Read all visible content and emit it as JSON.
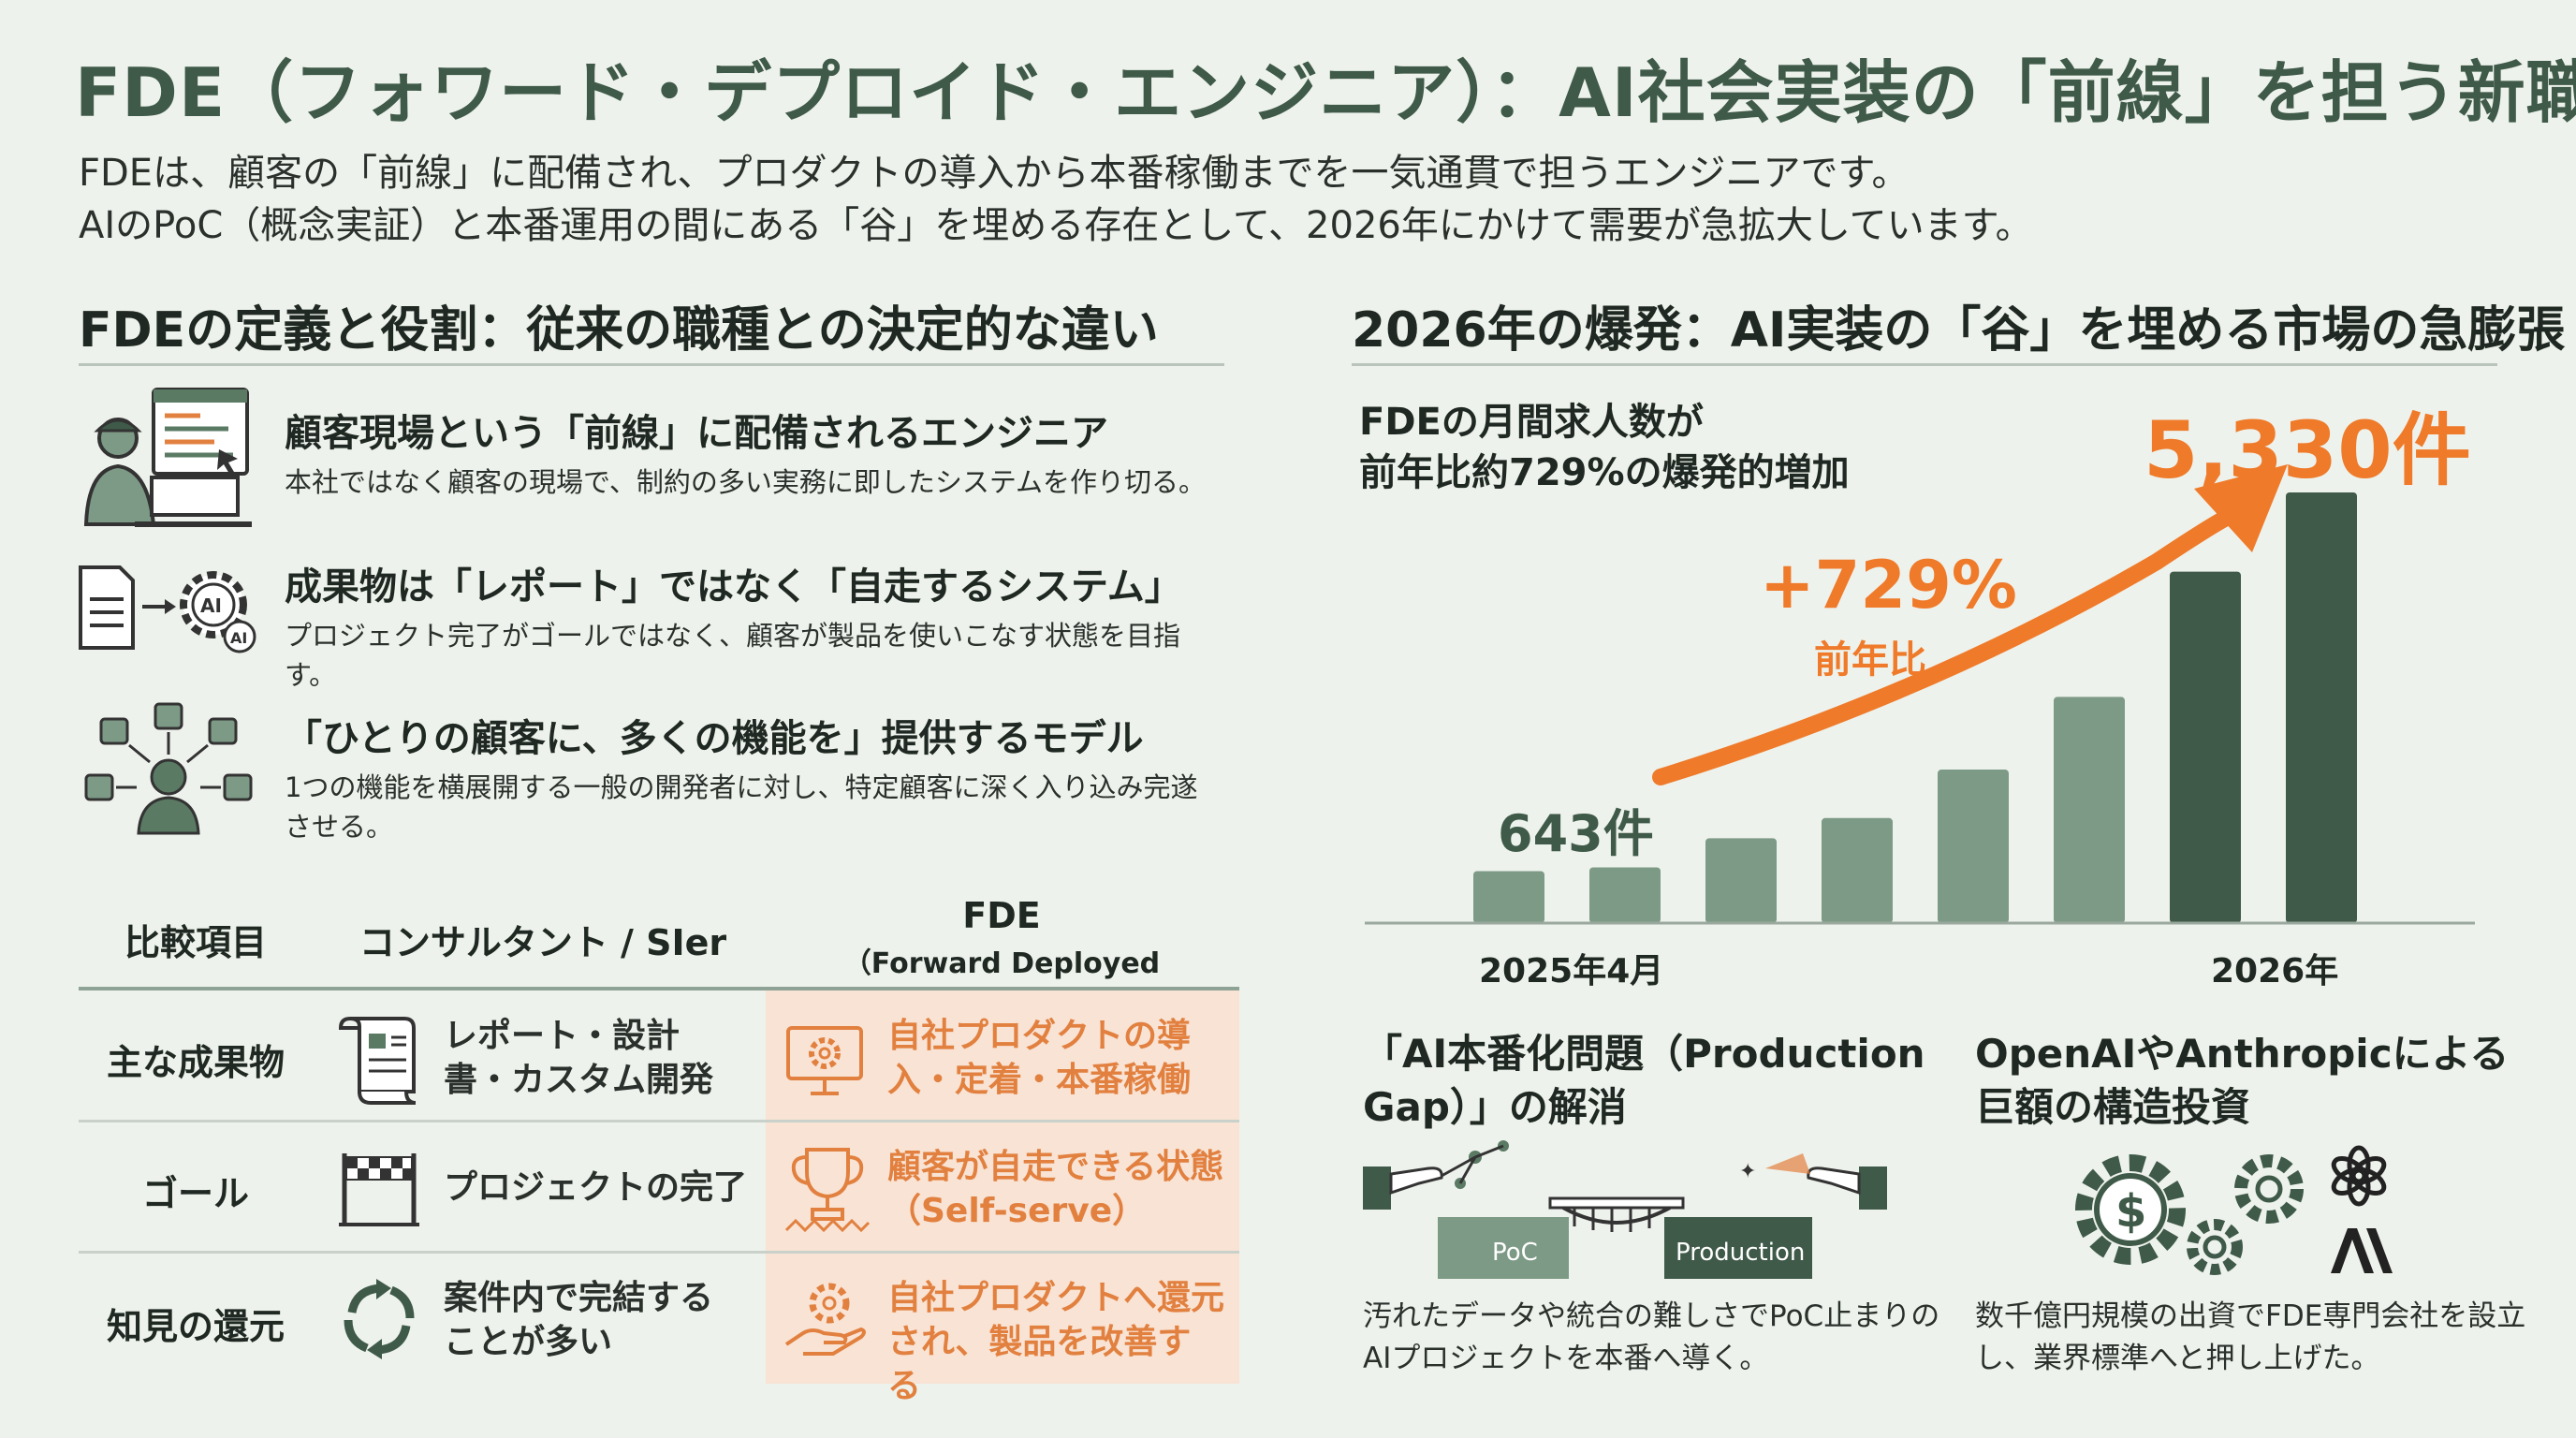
{
  "title": "FDE（フォワード・デプロイド・エンジニア）：AI社会実装の「前線」を担う新職種",
  "intro": {
    "line1": "FDEは、顧客の「前線」に配備され、プロダクトの導入から本番稼働までを一気通貫で担うエンジニアです。",
    "line2": "AIのPoC（概念実証）と本番運用の間にある「谷」を埋める存在として、2026年にかけて需要が急拡大しています。"
  },
  "left": {
    "heading": "FDEの定義と役割：従来の職種との決定的な違い",
    "roles": [
      {
        "icon": "engineer-at-desk-icon",
        "title": "顧客現場という「前線」に配備されるエンジニア",
        "desc": "本社ではなく顧客の現場で、制約の多い実務に即したシステムを作り切る。"
      },
      {
        "icon": "document-to-ai-gear-icon",
        "title": "成果物は「レポート」ではなく「自走するシステム」",
        "desc": "プロジェクト完了がゴールではなく、顧客が製品を使いこなす状態を目指す。"
      },
      {
        "icon": "person-network-icon",
        "title": "「ひとりの顧客に、多くの機能を」提供するモデル",
        "desc": "1つの機能を横展開する一般の開発者に対し、特定顧客に深く入り込み完遂させる。"
      }
    ],
    "table": {
      "headers": {
        "item": "比較項目",
        "consultant": "コンサルタント / SIer",
        "fde": "FDE",
        "fde_sub": "（Forward Deployed Engineer）"
      },
      "rows": [
        {
          "label": "主な成果物",
          "consultant_icon": "document-scroll-icon",
          "consultant": "レポート・設計書・カスタム開発",
          "fde_icon": "monitor-gear-icon",
          "fde": "自社プロダクトの導入・定着・本番稼働"
        },
        {
          "label": "ゴール",
          "consultant_icon": "finish-line-icon",
          "consultant": "プロジェクトの完了",
          "fde_icon": "trophy-icon",
          "fde": "顧客が自走できる状態（Self-serve）"
        },
        {
          "label": "知見の還元",
          "consultant_icon": "cycle-arrows-icon",
          "consultant": "案件内で完結することが多い",
          "fde_icon": "hand-gear-icon",
          "fde": "自社プロダクトへ還元され、製品を改善する"
        }
      ]
    }
  },
  "right": {
    "heading": "2026年の爆発：AI実装の「谷」を埋める市場の急膨張",
    "chart_label_line1": "FDEの月間求人数が",
    "chart_label_line2": "前年比約729%の爆発的増加",
    "end_value": "5,330件",
    "start_value": "643件",
    "growth": "+729%",
    "growth_sub": "前年比",
    "accent_color": "#ef7a2a",
    "primary_color": "#3f5a48",
    "chart_data": {
      "type": "bar",
      "categories": [
        "2025年4月",
        "",
        "",
        "",
        "",
        "",
        "",
        "2026年"
      ],
      "values": [
        643,
        690,
        1050,
        1300,
        1900,
        2800,
        4350,
        5330
      ],
      "annotations": [
        "643件",
        "5,330件",
        "+729%",
        "前年比"
      ]
    },
    "bottom": [
      {
        "heading": "「AI本番化問題（Production Gap）」の解消",
        "poc_label": "PoC",
        "prod_label": "Production",
        "desc": "汚れたデータや統合の難しさでPoC止まりのAIプロジェクトを本番へ導く。"
      },
      {
        "heading": "OpenAIやAnthropicによる巨額の構造投資",
        "desc": "数千億円規模の出資でFDE専門会社を設立し、業界標準へと押し上げた。"
      }
    ]
  }
}
